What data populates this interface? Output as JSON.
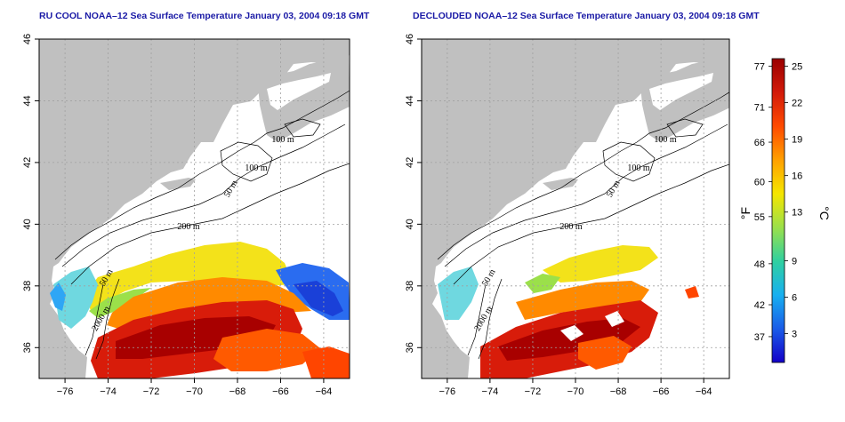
{
  "panels": [
    {
      "title": "RU COOL NOAA–12 Sea Surface Temperature January 03, 2004 09:18 GMT",
      "variant": "cloudy"
    },
    {
      "title": "DECLOUDED NOAA–12 Sea Surface Temperature January 03, 2004 09:18 GMT",
      "variant": "declouded"
    }
  ],
  "axes": {
    "x_ticks": [
      "−76",
      "−74",
      "−72",
      "−70",
      "−68",
      "−66",
      "−64"
    ],
    "x_values": [
      -76,
      -74,
      -72,
      -70,
      -68,
      -66,
      -64
    ],
    "y_ticks": [
      "36",
      "38",
      "40",
      "42",
      "44",
      "46"
    ],
    "y_values": [
      36,
      38,
      40,
      42,
      44,
      46
    ],
    "lon_range": [
      -77.2,
      -62.8
    ],
    "lat_range": [
      35,
      46
    ]
  },
  "contour_labels": [
    "100 m",
    "100 m",
    "50 m",
    "200 m",
    "50 m",
    "2000 m"
  ],
  "colorbar": {
    "fahrenheit_ticks": [
      "77",
      "71",
      "66",
      "60",
      "55",
      "48",
      "42",
      "37"
    ],
    "celsius_ticks": [
      "25",
      "22",
      "19",
      "16",
      "13",
      "9",
      "6",
      "3"
    ],
    "unit_f": "°F",
    "unit_c": "°C",
    "colors": [
      "#9a0000",
      "#d21a0a",
      "#ff4a00",
      "#ffa000",
      "#f5e600",
      "#9be04a",
      "#30d0a0",
      "#18b0f0",
      "#1a5ce8",
      "#1400c8"
    ]
  },
  "colors": {
    "land": "#c0c0c0",
    "title": "#1a1aa6",
    "grid": "#a0a0a0"
  }
}
